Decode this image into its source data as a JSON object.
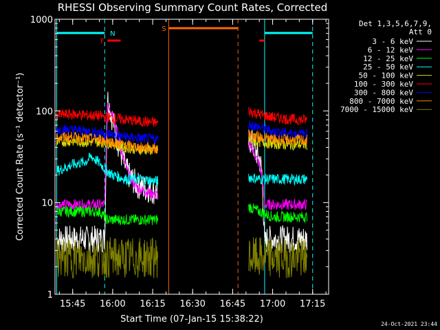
{
  "chart_data": {
    "type": "line",
    "title": "RHESSI Observing Summary Count Rates, Corrected",
    "xlabel": "Start Time (07-Jan-15 15:38:22)",
    "ylabel": "Corrected Count Rate (s⁻¹ detector⁻¹)",
    "y_scale": "log",
    "ylim": [
      1,
      1000
    ],
    "xlim_minutes": [
      15.63,
      17.35
    ],
    "x_unit": "UT time",
    "x_ticks": [
      "15:45",
      "16:00",
      "16:15",
      "16:30",
      "16:45",
      "17:00",
      "17:15"
    ],
    "y_ticks": [
      "1",
      "10",
      "100",
      "1000"
    ],
    "legend_header": [
      "Det 1,3,5,6,7,9,",
      "Att 0"
    ],
    "legend_placement": "right",
    "grid": false,
    "series": [
      {
        "name": "3 - 6 keV",
        "color": "#ffffff",
        "segments": [
          {
            "t": [
              "15:39",
              "15:45",
              "15:50",
              "15:55",
              "15:57",
              "15:58",
              "16:00",
              "16:02",
              "16:04",
              "16:06",
              "16:08",
              "16:10",
              "16:13",
              "16:17"
            ],
            "v": [
              4,
              4,
              4,
              4,
              4,
              140,
              80,
              45,
              28,
              20,
              17,
              15,
              14,
              13
            ]
          },
          {
            "t": [
              "16:51",
              "16:52",
              "16:53",
              "16:55",
              "16:56",
              "16:57",
              "16:58",
              "17:00",
              "17:05",
              "17:10",
              "17:13"
            ],
            "v": [
              45,
              48,
              40,
              30,
              22,
              3.5,
              4,
              4,
              4,
              4,
              4
            ]
          }
        ]
      },
      {
        "name": "6 - 12 keV",
        "color": "#ff00ff",
        "segments": [
          {
            "t": [
              "15:39",
              "15:45",
              "15:50",
              "15:55",
              "15:57",
              "15:58",
              "16:00",
              "16:02",
              "16:04",
              "16:06",
              "16:08",
              "16:10",
              "16:13",
              "16:17"
            ],
            "v": [
              9.5,
              9.5,
              9.5,
              9.5,
              9.5,
              125,
              95,
              55,
              30,
              20,
              16,
              14,
              13,
              12
            ]
          },
          {
            "t": [
              "16:51",
              "16:52",
              "16:53",
              "16:55",
              "16:56",
              "16:57",
              "16:58",
              "17:00",
              "17:05",
              "17:10",
              "17:13"
            ],
            "v": [
              40,
              42,
              35,
              26,
              20,
              9.5,
              9.5,
              9.5,
              9.5,
              9.5,
              9.5
            ]
          }
        ]
      },
      {
        "name": "12 - 25 keV",
        "color": "#00ff00",
        "segments": [
          {
            "t": [
              "15:39",
              "15:45",
              "15:50",
              "15:55",
              "15:58",
              "16:00",
              "16:05",
              "16:10",
              "16:17"
            ],
            "v": [
              8,
              8,
              8,
              8,
              6.5,
              6.5,
              6.5,
              6.5,
              6.5
            ]
          },
          {
            "t": [
              "16:51",
              "16:55",
              "17:00",
              "17:05",
              "17:10",
              "17:13"
            ],
            "v": [
              9,
              8,
              7,
              7,
              7,
              7
            ]
          }
        ]
      },
      {
        "name": "25 - 50 keV",
        "color": "#00ffff",
        "segments": [
          {
            "t": [
              "15:39",
              "15:45",
              "15:50",
              "15:52",
              "15:55",
              "15:58",
              "16:00",
              "16:05",
              "16:10",
              "16:17"
            ],
            "v": [
              22,
              26,
              28,
              32,
              27,
              22,
              20,
              18,
              18,
              17
            ]
          },
          {
            "t": [
              "16:51",
              "16:55",
              "17:00",
              "17:05",
              "17:10",
              "17:13"
            ],
            "v": [
              19,
              18,
              18,
              18,
              18,
              18
            ]
          }
        ]
      },
      {
        "name": "50 - 100 keV",
        "color": "#dddd00",
        "segments": [
          {
            "t": [
              "15:39",
              "15:45",
              "15:50",
              "15:55",
              "16:00",
              "16:05",
              "16:10",
              "16:17"
            ],
            "v": [
              46,
              47,
              46,
              46,
              44,
              40,
              38,
              37
            ]
          },
          {
            "t": [
              "16:51",
              "16:55",
              "17:00",
              "17:05",
              "17:10",
              "17:13"
            ],
            "v": [
              48,
              46,
              44,
              43,
              43,
              43
            ]
          }
        ]
      },
      {
        "name": "100 - 300 keV",
        "color": "#ff0000",
        "segments": [
          {
            "t": [
              "15:39",
              "15:45",
              "15:50",
              "15:55",
              "16:00",
              "16:05",
              "16:10",
              "16:17"
            ],
            "v": [
              90,
              92,
              90,
              88,
              84,
              80,
              77,
              74
            ]
          },
          {
            "t": [
              "16:51",
              "16:55",
              "17:00",
              "17:05",
              "17:10",
              "17:13"
            ],
            "v": [
              100,
              92,
              85,
              82,
              80,
              80
            ]
          }
        ]
      },
      {
        "name": "300 - 800 keV",
        "color": "#0000ff",
        "segments": [
          {
            "t": [
              "15:39",
              "15:45",
              "15:50",
              "15:55",
              "16:00",
              "16:05",
              "16:10",
              "16:17"
            ],
            "v": [
              63,
              62,
              60,
              58,
              55,
              52,
              50,
              49
            ]
          },
          {
            "t": [
              "16:51",
              "16:55",
              "17:00",
              "17:05",
              "17:10",
              "17:13"
            ],
            "v": [
              72,
              66,
              60,
              57,
              56,
              56
            ]
          }
        ]
      },
      {
        "name": "800 - 7000 keV",
        "color": "#ff8800",
        "segments": [
          {
            "t": [
              "15:39",
              "15:45",
              "15:50",
              "15:55",
              "16:00",
              "16:05",
              "16:10",
              "16:17"
            ],
            "v": [
              51,
              52,
              50,
              49,
              45,
              42,
              40,
              39
            ]
          },
          {
            "t": [
              "16:51",
              "16:55",
              "17:00",
              "17:05",
              "17:10",
              "17:13"
            ],
            "v": [
              55,
              52,
              49,
              48,
              48,
              48
            ]
          }
        ]
      },
      {
        "name": "7000 - 15000 keV",
        "color": "#808000",
        "segments": [
          {
            "t": [
              "15:39",
              "15:45",
              "15:50",
              "15:55",
              "15:58",
              "16:00",
              "16:05",
              "16:10",
              "16:17"
            ],
            "v": [
              2.5,
              2.5,
              2.5,
              2.5,
              2.5,
              2.5,
              2.5,
              2.5,
              2.5
            ]
          },
          {
            "t": [
              "16:51",
              "16:55",
              "17:00",
              "17:05",
              "17:10",
              "17:13"
            ],
            "v": [
              2.5,
              2.5,
              2.5,
              2.5,
              2.5,
              2.5
            ]
          }
        ]
      }
    ],
    "state_bars": [
      {
        "label": "N",
        "color": "#00ffff",
        "start": "15:39",
        "end": "15:57"
      },
      {
        "label": "F",
        "color": "#ff0000",
        "start": "15:58",
        "end": "16:03"
      },
      {
        "label": "S",
        "color": "#ff6600",
        "start": "16:21",
        "end": "16:47"
      },
      {
        "label": "",
        "color": "#ff0000",
        "start": "16:55",
        "end": "16:57"
      },
      {
        "label": "",
        "color": "#00ffff",
        "start": "16:57",
        "end": "17:15"
      }
    ],
    "markers": [
      {
        "time": "15:39",
        "color": "#00ffff",
        "style": "solid"
      },
      {
        "time": "15:57",
        "color": "#00ffff",
        "style": "dashed"
      },
      {
        "time": "16:21",
        "color": "#ff6600",
        "style": "solid"
      },
      {
        "time": "16:47",
        "color": "#ff6600",
        "style": "dashed"
      },
      {
        "time": "16:57",
        "color": "#00ffff",
        "style": "solid"
      },
      {
        "time": "17:15",
        "color": "#00ffff",
        "style": "dashed"
      }
    ],
    "timestamp": "24-Oct-2021 23:44"
  }
}
